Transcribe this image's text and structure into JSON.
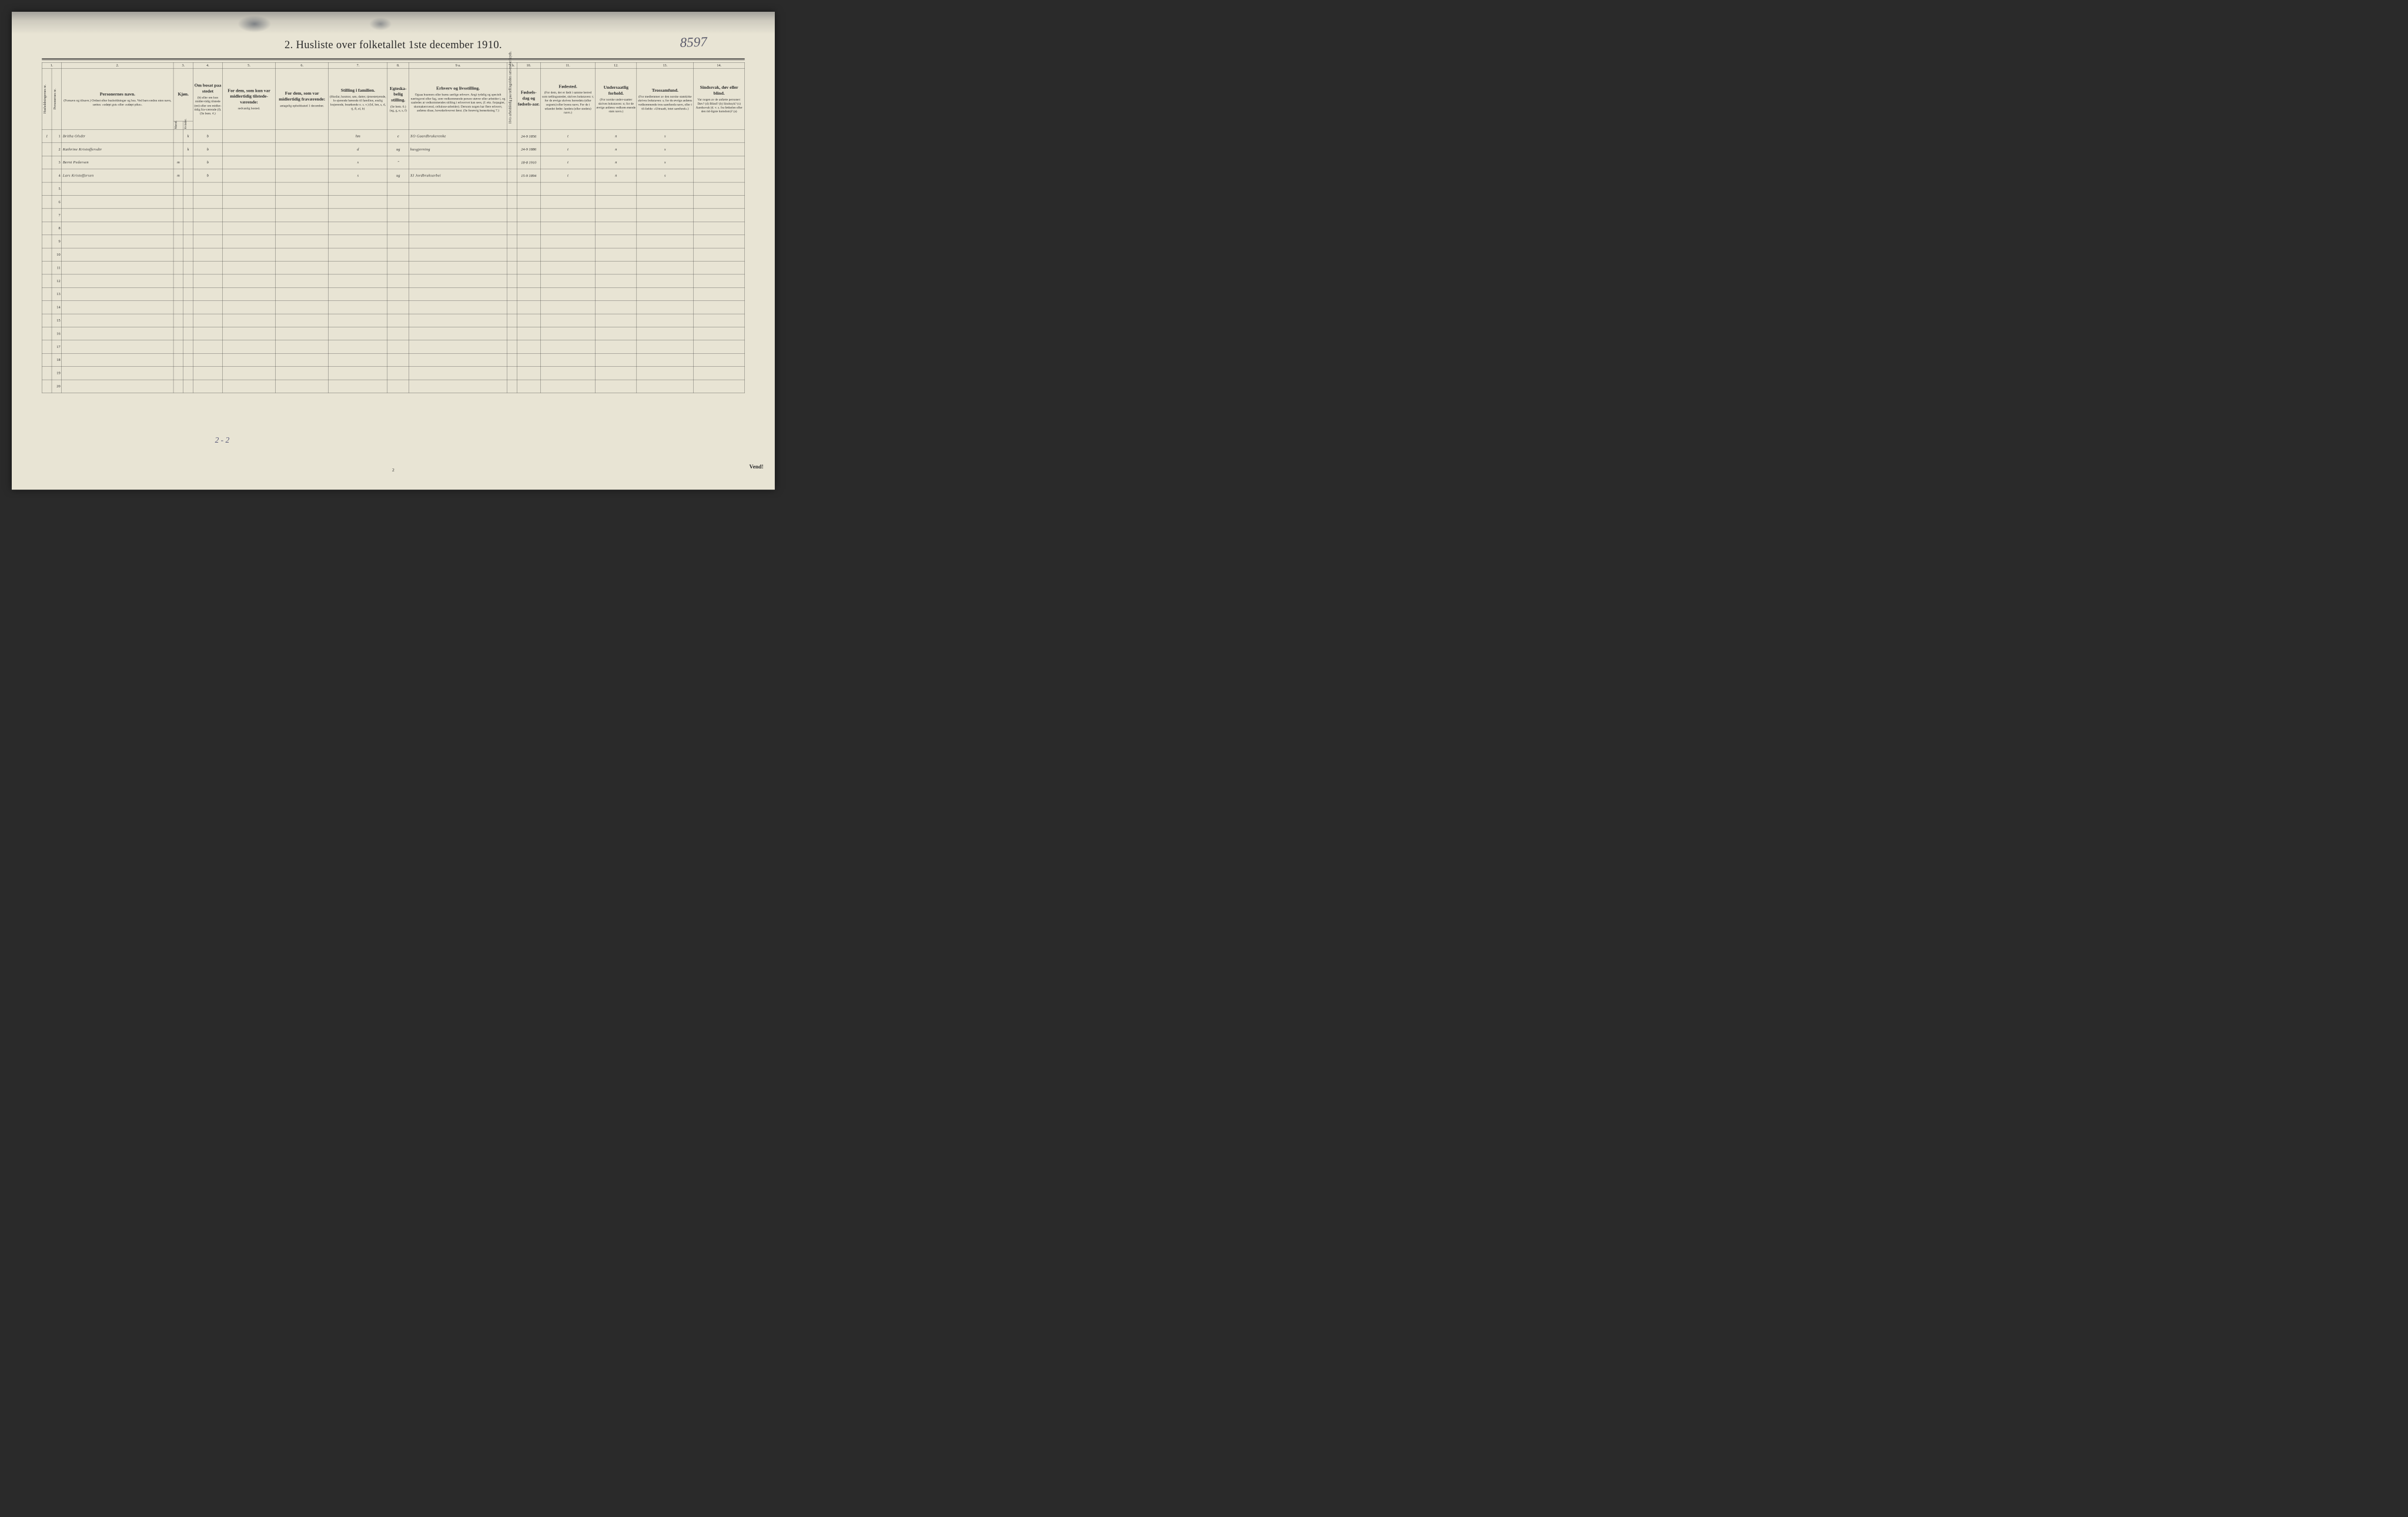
{
  "title": "2.  Husliste over folketallet 1ste december 1910.",
  "annotationNumber": "8597",
  "pageNumber": "2",
  "vendText": "Vend!",
  "bottomAnnotation": "2 - 2",
  "colNumbers": [
    "1.",
    "2.",
    "3.",
    "4.",
    "5.",
    "6.",
    "7.",
    "8.",
    "9 a.",
    "9 b.",
    "10.",
    "11.",
    "12.",
    "13.",
    "14."
  ],
  "headers": {
    "col1": "Husholdningernes nr.",
    "col1b": "Personernes nr.",
    "col2_main": "Personernes navn.",
    "col2_sub": "(Fornavn og tilnavn.)\nOrdnet efter husholdninger og hus.\nVed barn endnu uten navn, sættes: «udøpt gut» eller «udøpt pike».",
    "col3_main": "Kjøn.",
    "col3_sub_m": "Mænd.",
    "col3_sub_k": "Kvinder.",
    "col3_bottom": "m.  k.",
    "col4_main": "Om bosat paa stedet",
    "col4_sub": "(b) eller om kun midler-tidig tilstede (mt) eller om midler-tidig fra-værende (f).\n(Se bem. 4.)",
    "col5_main": "For dem, som kun var midlertidig tilstede-værende:",
    "col5_sub": "sedvanlig bosted.",
    "col6_main": "For dem, som var midlertidig fraværende:",
    "col6_sub": "antagelig opholdssted 1 december.",
    "col7_main": "Stilling i familien.",
    "col7_sub": "(Husfar, husmor, søn, datter, tjenestetyende, lo-sjerende hørende til familien, enslig losjerende, besøkende o. s. v.)\n(hf, hm, s, d, tj, fl, el, b)",
    "col8_main": "Egteska-belig stilling.",
    "col8_sub": "(Se bem. 6.)\n(ug, g, e, s, f)",
    "col9_main": "Erhverv og livsstilling.",
    "col9_sub": "Ogsaa husmors eller barns særlige erhverv.\nAngi tydelig og specielt næringsvei eller fag, som vedkommende person utøver eller arbeider i, og saaledes at vedkommendes stilling i erhvervet kan sees, (f. eks. forpagter, skomakersvend, cellulose-arbeider). Dersom nogen har flere erhverv, anføres disse, hovederhvervet først.\n(Se forøvrig bemerkning 7.)",
    "col9b": "Hvis arbeidsledig paa tællingstiden sæt-tes her kryds.",
    "col10_main": "Fødsels-dag og fødsels-aar.",
    "col11_main": "Fødested.",
    "col11_sub": "(For dem, der er født i samme herred som tællingsstedet, skrives bokstaven: t; for de øvrige skrives herredets (eller sognets) eller byens navn.\nFor de i utlandet fødte: landets (eller stedets) navn.)",
    "col12_main": "Undersaatlig forhold.",
    "col12_sub": "(For norske under-saatter skrives bokstaven: n; for de øvrige anføres vedkom-mende stats navn.)",
    "col13_main": "Trossamfund.",
    "col13_sub": "(For medlemmer av den norske statskirke skrives bokstaven: s; for de øvrige anføres vedkommende tros-samfunds navn, eller i til-fælde: «Uttraadt, intet samfund».)",
    "col14_main": "Sindssvak, døv eller blind.",
    "col14_sub": "Var nogen av de anførte personer:\nDøv?        (d)\nBlind?       (b)\nSindssyk?  (s)\nAandssvak (d. v. s. fra fødselen eller den tid-ligste barndom)?  (a)"
  },
  "rows": [
    {
      "household": "1",
      "person": "1",
      "name": "Britha Olsdtr",
      "sex_m": "",
      "sex_k": "k",
      "residence": "b",
      "temp_present": "",
      "temp_absent": "",
      "family_pos": "hm",
      "marital": "e",
      "occupation": "Gaardbrukerenke",
      "occupation_mark": "XO",
      "unemployed": "",
      "birthdate": "24-9 1856",
      "birthplace": "t",
      "nationality": "n",
      "religion": "s",
      "disability": ""
    },
    {
      "household": "",
      "person": "2",
      "name": "Kathrine Kristoffersdtr",
      "sex_m": "",
      "sex_k": "k",
      "residence": "b",
      "temp_present": "",
      "temp_absent": "",
      "family_pos": "d",
      "marital": "ug",
      "occupation": "husgjerning",
      "occupation_mark": "",
      "unemployed": "",
      "birthdate": "24-9 1886",
      "birthplace": "t",
      "nationality": "n",
      "religion": "s",
      "disability": ""
    },
    {
      "household": "",
      "person": "3",
      "name": "Bernt Pedersen",
      "sex_m": "m",
      "sex_k": "",
      "residence": "b",
      "temp_present": "",
      "temp_absent": "",
      "family_pos": "s",
      "marital": "\"",
      "occupation": "",
      "occupation_mark": "",
      "unemployed": "",
      "birthdate": "18-8 1910",
      "birthplace": "t",
      "nationality": "n",
      "religion": "s",
      "disability": ""
    },
    {
      "household": "",
      "person": "4",
      "name": "Lars Kristoffersen",
      "sex_m": "m",
      "sex_k": "",
      "residence": "b",
      "temp_present": "",
      "temp_absent": "",
      "family_pos": "s",
      "marital": "ug",
      "occupation": "Jordbruksarbei",
      "occupation_mark": "XI",
      "unemployed": "",
      "birthdate": "15-9 1894",
      "birthplace": "t",
      "nationality": "n",
      "religion": "s",
      "disability": ""
    }
  ],
  "emptyRows": [
    5,
    6,
    7,
    8,
    9,
    10,
    11,
    12,
    13,
    14,
    15,
    16,
    17,
    18,
    19,
    20
  ],
  "colors": {
    "paper": "#e8e4d4",
    "ink": "#2a2a2a",
    "handwriting": "#5a5a7a",
    "background": "#2a2a2a"
  }
}
